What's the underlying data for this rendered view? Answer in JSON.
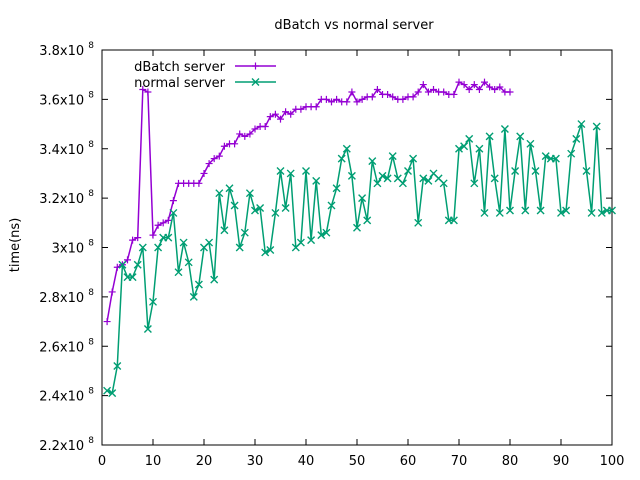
{
  "chart_data": {
    "type": "line",
    "title": "dBatch vs normal server",
    "xlabel": "",
    "ylabel": "time(ns)",
    "xlim": [
      0,
      100
    ],
    "ylim": [
      220000000,
      380000000
    ],
    "xticks": [
      0,
      10,
      20,
      30,
      40,
      50,
      60,
      70,
      80,
      90,
      100
    ],
    "xtick_labels": [
      "0",
      "10",
      "20",
      "30",
      "40",
      "50",
      "60",
      "70",
      "80",
      "90",
      "100"
    ],
    "yticks": [
      220000000,
      240000000,
      260000000,
      280000000,
      300000000,
      320000000,
      340000000,
      360000000,
      380000000
    ],
    "ytick_labels": [
      {
        "mantissa": "2.2x10",
        "exp": "8"
      },
      {
        "mantissa": "2.4x10",
        "exp": "8"
      },
      {
        "mantissa": "2.6x10",
        "exp": "8"
      },
      {
        "mantissa": "2.8x10",
        "exp": "8"
      },
      {
        "mantissa": "3x10",
        "exp": "8"
      },
      {
        "mantissa": "3.2x10",
        "exp": "8"
      },
      {
        "mantissa": "3.4x10",
        "exp": "8"
      },
      {
        "mantissa": "3.6x10",
        "exp": "8"
      },
      {
        "mantissa": "3.8x10",
        "exp": "8"
      }
    ],
    "grid": false,
    "legend_position": "top-left",
    "series": [
      {
        "name": "dBatch server",
        "color": "#9400d3",
        "marker": "plus",
        "x": [
          1,
          2,
          3,
          4,
          5,
          6,
          7,
          8,
          9,
          10,
          11,
          12,
          13,
          14,
          15,
          16,
          17,
          18,
          19,
          20,
          21,
          22,
          23,
          24,
          25,
          26,
          27,
          28,
          29,
          30,
          31,
          32,
          33,
          34,
          35,
          36,
          37,
          38,
          39,
          40,
          41,
          42,
          43,
          44,
          45,
          46,
          47,
          48,
          49,
          50,
          51,
          52,
          53,
          54,
          55,
          56,
          57,
          58,
          59,
          60,
          61,
          62,
          63,
          64,
          65,
          66,
          67,
          68,
          69,
          70,
          71,
          72,
          73,
          74,
          75,
          76,
          77,
          78,
          79,
          80
        ],
        "y": [
          270000000,
          282000000,
          292000000,
          293000000,
          295000000,
          303000000,
          304000000,
          364000000,
          363000000,
          305000000,
          309000000,
          310000000,
          311000000,
          319000000,
          326000000,
          326000000,
          326000000,
          326000000,
          326000000,
          330000000,
          334000000,
          336000000,
          337000000,
          341000000,
          342000000,
          342000000,
          346000000,
          345000000,
          346000000,
          348000000,
          349000000,
          349000000,
          353000000,
          354000000,
          352000000,
          355000000,
          354000000,
          356000000,
          356000000,
          357000000,
          357000000,
          357000000,
          360000000,
          360000000,
          359000000,
          360000000,
          359000000,
          359000000,
          363000000,
          359000000,
          360000000,
          361000000,
          361000000,
          364000000,
          362000000,
          362000000,
          361000000,
          360000000,
          360000000,
          361000000,
          361000000,
          363000000,
          366000000,
          363000000,
          364000000,
          363000000,
          363000000,
          362000000,
          362000000,
          367000000,
          366000000,
          364000000,
          366000000,
          364000000,
          367000000,
          365000000,
          364000000,
          365000000,
          363000000,
          363000000
        ]
      },
      {
        "name": "normal server",
        "color": "#009e73",
        "marker": "x",
        "x": [
          1,
          2,
          3,
          4,
          5,
          6,
          7,
          8,
          9,
          10,
          11,
          12,
          13,
          14,
          15,
          16,
          17,
          18,
          19,
          20,
          21,
          22,
          23,
          24,
          25,
          26,
          27,
          28,
          29,
          30,
          31,
          32,
          33,
          34,
          35,
          36,
          37,
          38,
          39,
          40,
          41,
          42,
          43,
          44,
          45,
          46,
          47,
          48,
          49,
          50,
          51,
          52,
          53,
          54,
          55,
          56,
          57,
          58,
          59,
          60,
          61,
          62,
          63,
          64,
          65,
          66,
          67,
          68,
          69,
          70,
          71,
          72,
          73,
          74,
          75,
          76,
          77,
          78,
          79,
          80,
          81,
          82,
          83,
          84,
          85,
          86,
          87,
          88,
          89,
          90,
          91,
          92,
          93,
          94,
          95,
          96,
          97,
          98,
          99,
          100
        ],
        "y": [
          242000000,
          241000000,
          252000000,
          293000000,
          288000000,
          288000000,
          293000000,
          300000000,
          267000000,
          278000000,
          300000000,
          304000000,
          304000000,
          314000000,
          290000000,
          302000000,
          294000000,
          280000000,
          285000000,
          300000000,
          302000000,
          287000000,
          322000000,
          307000000,
          324000000,
          317000000,
          300000000,
          306000000,
          322000000,
          315000000,
          316000000,
          298000000,
          299000000,
          314000000,
          331000000,
          316000000,
          330000000,
          300000000,
          302000000,
          331000000,
          303000000,
          327000000,
          305000000,
          306000000,
          317000000,
          324000000,
          336000000,
          340000000,
          329000000,
          308000000,
          320000000,
          311000000,
          335000000,
          326000000,
          329000000,
          328000000,
          337000000,
          328000000,
          326000000,
          331000000,
          336000000,
          310000000,
          328000000,
          327000000,
          330000000,
          328000000,
          326000000,
          311000000,
          311000000,
          340000000,
          341000000,
          344000000,
          326000000,
          340000000,
          314000000,
          345000000,
          328000000,
          314000000,
          348000000,
          315000000,
          331000000,
          345000000,
          315000000,
          342000000,
          331000000,
          315000000,
          337000000,
          336000000,
          336000000,
          314000000,
          315000000,
          338000000,
          344000000,
          350000000,
          331000000,
          314000000,
          349000000,
          314000000,
          315000000,
          315000000
        ]
      }
    ]
  }
}
